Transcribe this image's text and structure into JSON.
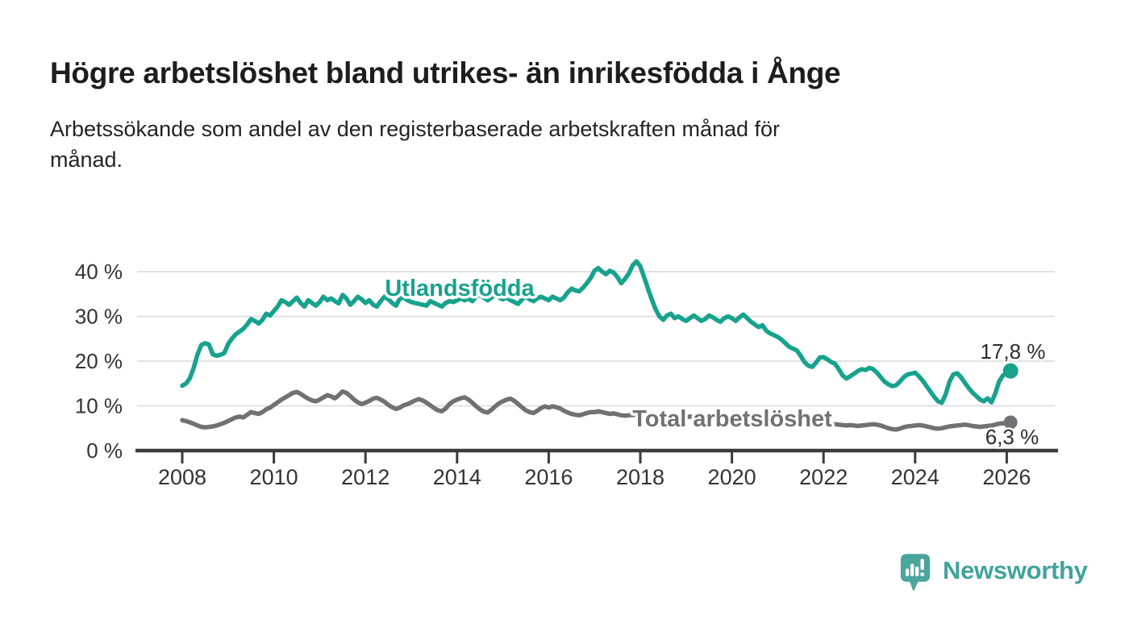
{
  "header": {
    "title": "Högre arbetslöshet bland utrikes- än inrikesfödda i Ånge",
    "subtitle_line1": "Arbetssökande som andel av den registerbaserade arbetskraften månad för",
    "subtitle_line2": "månad."
  },
  "chart_data": {
    "type": "line",
    "title": "Högre arbetslöshet bland utrikes- än inrikesfödda i Ånge",
    "subtitle": "Arbetssökande som andel av den registerbaserade arbetskraften månad för månad.",
    "x_unit": "year-month",
    "x_start": "2008-01",
    "x_end": "2026-02",
    "xlim": [
      2007.0,
      2027.1
    ],
    "ylim": [
      0,
      45
    ],
    "grid": "horizontal",
    "grid_color": "#d9d9d9",
    "axis_color": "#3b3b3b",
    "tick_label_color": "#333333",
    "end_label_color": "#2d2d2d",
    "x_ticks": [
      2008,
      2010,
      2012,
      2014,
      2016,
      2018,
      2020,
      2022,
      2024,
      2026
    ],
    "x_tick_labels": [
      "2008",
      "2010",
      "2012",
      "2014",
      "2016",
      "2018",
      "2020",
      "2022",
      "2024",
      "2026"
    ],
    "y_ticks": [
      0,
      10,
      20,
      30,
      40
    ],
    "y_tick_labels": [
      "0 %",
      "10 %",
      "20 %",
      "30 %",
      "40 %"
    ],
    "series": [
      {
        "name": "Utlandsfödda",
        "color": "#17a28e",
        "end_value": 17.8,
        "end_label": "17,8 %",
        "values": [
          14.5,
          15.0,
          16.2,
          18.5,
          21.5,
          23.6,
          24.0,
          23.7,
          21.5,
          21.2,
          21.4,
          21.8,
          23.8,
          25.0,
          26.0,
          26.6,
          27.2,
          28.2,
          29.4,
          29.0,
          28.4,
          29.2,
          30.6,
          30.2,
          31.2,
          32.2,
          33.6,
          33.2,
          32.6,
          33.4,
          34.2,
          33.0,
          32.2,
          33.6,
          33.0,
          32.4,
          33.2,
          34.4,
          33.6,
          34.0,
          33.4,
          32.9,
          34.8,
          34.0,
          32.6,
          33.4,
          34.4,
          33.8,
          33.0,
          33.6,
          32.6,
          32.2,
          33.4,
          34.4,
          33.8,
          33.0,
          32.4,
          34.0,
          34.2,
          33.6,
          33.2,
          33.0,
          32.8,
          32.6,
          32.4,
          33.4,
          33.0,
          32.6,
          32.2,
          33.0,
          33.4,
          33.2,
          33.6,
          34.0,
          33.6,
          34.0,
          33.4,
          34.4,
          34.8,
          34.2,
          33.6,
          34.2,
          34.8,
          34.2,
          33.8,
          34.2,
          33.6,
          33.2,
          32.8,
          33.8,
          34.4,
          33.8,
          33.4,
          34.0,
          34.4,
          34.0,
          33.6,
          34.4,
          34.0,
          33.6,
          34.2,
          35.4,
          36.2,
          35.8,
          35.6,
          36.4,
          37.4,
          38.6,
          40.2,
          40.8,
          40.0,
          39.4,
          40.2,
          39.8,
          38.8,
          37.4,
          38.4,
          39.6,
          41.4,
          42.3,
          41.2,
          38.8,
          36.2,
          33.8,
          31.6,
          30.0,
          29.2,
          30.2,
          30.6,
          29.6,
          30.0,
          29.4,
          29.0,
          29.6,
          30.2,
          29.6,
          29.0,
          29.4,
          30.2,
          29.8,
          29.2,
          28.8,
          29.6,
          30.0,
          29.6,
          29.0,
          29.8,
          30.4,
          29.6,
          28.8,
          28.2,
          27.6,
          28.0,
          26.8,
          26.2,
          25.8,
          25.4,
          24.8,
          24.0,
          23.2,
          22.8,
          22.4,
          21.2,
          19.8,
          19.0,
          18.7,
          19.6,
          20.8,
          20.9,
          20.4,
          19.8,
          19.4,
          18.2,
          16.8,
          16.1,
          16.6,
          17.2,
          17.8,
          18.2,
          18.0,
          18.5,
          18.2,
          17.4,
          16.4,
          15.4,
          14.8,
          14.4,
          14.6,
          15.4,
          16.4,
          17.0,
          17.2,
          17.4,
          16.6,
          15.6,
          14.4,
          13.2,
          12.0,
          11.0,
          10.7,
          12.6,
          15.4,
          17.0,
          17.3,
          16.4,
          15.2,
          14.0,
          13.0,
          12.2,
          11.4,
          11.0,
          11.7,
          10.8,
          12.8,
          15.4,
          16.8,
          17.4,
          17.8
        ]
      },
      {
        "name": "Total arbetslöshet",
        "color": "#717175",
        "end_value": 6.3,
        "end_label": "6,3 %",
        "values": [
          6.8,
          6.6,
          6.3,
          6.0,
          5.6,
          5.3,
          5.2,
          5.3,
          5.4,
          5.6,
          5.9,
          6.2,
          6.6,
          7.0,
          7.4,
          7.6,
          7.4,
          8.0,
          8.6,
          8.4,
          8.2,
          8.6,
          9.2,
          9.6,
          10.2,
          10.8,
          11.4,
          11.9,
          12.4,
          12.9,
          13.1,
          12.7,
          12.1,
          11.6,
          11.2,
          11.0,
          11.4,
          11.9,
          12.4,
          12.1,
          11.7,
          12.4,
          13.2,
          12.9,
          12.2,
          11.4,
          10.8,
          10.4,
          10.7,
          11.1,
          11.6,
          11.8,
          11.4,
          10.9,
          10.2,
          9.7,
          9.3,
          9.6,
          10.1,
          10.4,
          10.8,
          11.2,
          11.5,
          11.2,
          10.7,
          10.1,
          9.5,
          9.0,
          8.8,
          9.4,
          10.4,
          11.0,
          11.4,
          11.7,
          11.9,
          11.4,
          10.7,
          9.9,
          9.2,
          8.7,
          8.5,
          9.1,
          9.9,
          10.6,
          11.0,
          11.4,
          11.6,
          11.1,
          10.4,
          9.7,
          9.0,
          8.6,
          8.4,
          8.9,
          9.5,
          9.9,
          9.6,
          9.9,
          9.7,
          9.4,
          8.9,
          8.5,
          8.2,
          8.0,
          7.9,
          8.1,
          8.4,
          8.6,
          8.6,
          8.8,
          8.6,
          8.4,
          8.2,
          8.3,
          8.1,
          7.9,
          7.8,
          7.9,
          8.0,
          7.9,
          7.8,
          7.9,
          7.8,
          7.6,
          7.5,
          7.4,
          7.3,
          7.4,
          7.3,
          7.2,
          7.3,
          7.4,
          7.5,
          7.6,
          7.5,
          7.3,
          7.2,
          7.1,
          7.2,
          7.3,
          7.2,
          7.1,
          7.2,
          7.3,
          7.4,
          7.5,
          7.7,
          8.0,
          8.1,
          8.0,
          7.9,
          7.8,
          7.6,
          7.4,
          7.2,
          7.1,
          7.2,
          7.3,
          7.2,
          7.0,
          6.8,
          6.6,
          6.4,
          6.3,
          6.1,
          6.0,
          5.9,
          5.9,
          6.0,
          6.1,
          6.0,
          5.9,
          5.8,
          5.7,
          5.6,
          5.7,
          5.6,
          5.5,
          5.6,
          5.7,
          5.8,
          5.9,
          5.8,
          5.6,
          5.3,
          5.0,
          4.8,
          4.7,
          4.9,
          5.2,
          5.4,
          5.5,
          5.6,
          5.7,
          5.6,
          5.4,
          5.2,
          5.0,
          4.9,
          5.0,
          5.2,
          5.4,
          5.5,
          5.6,
          5.7,
          5.8,
          5.7,
          5.5,
          5.4,
          5.3,
          5.4,
          5.5,
          5.6,
          5.8,
          6.0,
          6.1,
          6.2,
          6.3
        ]
      }
    ]
  },
  "footer": {
    "brand": "Newsworthy",
    "brand_color": "#42a39b",
    "logo_icon": "speech-bubble-bar-chart"
  }
}
